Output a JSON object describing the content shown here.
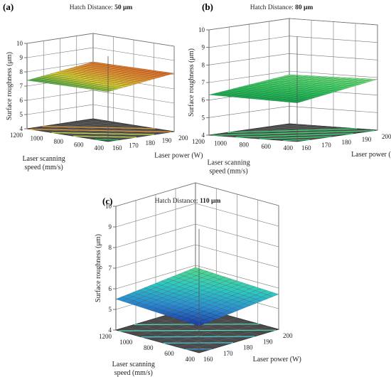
{
  "colors": {
    "floor": "#4a4a4a",
    "floor_grid": "#8a8a8a",
    "box_line": "#555555",
    "contour_low": "#18c85a",
    "contour_mid": "#c8e048",
    "contour_high": "#f0a030"
  },
  "chart_data": [
    {
      "type": "surface",
      "panel": "(a)",
      "title_prefix": "Hatch Distance: ",
      "title_value": "50 μm",
      "zlabel": "Surface roughness (μm)",
      "xlabel": "Laser power (W)",
      "ylabel_line1": "Laser scanning",
      "ylabel_line2": "speed (mm/s)",
      "x_ticks": [
        "160",
        "170",
        "180",
        "190",
        "200"
      ],
      "y_ticks": [
        "400",
        "600",
        "800",
        "1000",
        "1200"
      ],
      "z_ticks": [
        "4",
        "5",
        "6",
        "7",
        "8",
        "9",
        "10"
      ],
      "xlim": [
        160,
        200
      ],
      "ylim": [
        400,
        1200
      ],
      "zlim": [
        4,
        10
      ],
      "surface_z": {
        "x160_y400": 7.5,
        "x200_y400": 8.1,
        "x160_y1200": 7.4,
        "x200_y1200": 8.0
      },
      "colormap": "orange-yellow-green"
    },
    {
      "type": "surface",
      "panel": "(b)",
      "title_prefix": "Hatch Distance: ",
      "title_value": "80 μm",
      "zlabel": "Surface roughness (μm)",
      "xlabel": "Laser power (W)",
      "ylabel_line1": "Laser scanning",
      "ylabel_line2": "speed (mm/s)",
      "x_ticks": [
        "160",
        "170",
        "180",
        "190",
        "200"
      ],
      "y_ticks": [
        "400",
        "600",
        "800",
        "1000",
        "1200"
      ],
      "z_ticks": [
        "4",
        "5",
        "6",
        "7",
        "8",
        "9",
        "10"
      ],
      "xlim": [
        160,
        200
      ],
      "ylim": [
        400,
        1200
      ],
      "zlim": [
        4,
        10
      ],
      "surface_z": {
        "x160_y400": 6.2,
        "x200_y400": 6.9,
        "x160_y1200": 6.3,
        "x200_y1200": 6.8
      },
      "colormap": "green"
    },
    {
      "type": "surface",
      "panel": "(c)",
      "title_prefix": "Hatch Distance: ",
      "title_value": "110 μm",
      "zlabel": "Surface roughness (μm)",
      "xlabel": "Laser power (W)",
      "ylabel_line1": "Laser scanning",
      "ylabel_line2": "speed (mm/s)",
      "x_ticks": [
        "160",
        "170",
        "180",
        "190",
        "200"
      ],
      "y_ticks": [
        "400",
        "600",
        "800",
        "1000",
        "1200"
      ],
      "z_ticks": [
        "4",
        "5",
        "6",
        "7",
        "8",
        "9",
        "10"
      ],
      "xlim": [
        160,
        200
      ],
      "ylim": [
        400,
        1200
      ],
      "zlim": [
        4,
        10
      ],
      "surface_z": {
        "x160_y400": 5.3,
        "x200_y400": 5.7,
        "x160_y1200": 5.5,
        "x200_y1200": 5.9
      },
      "colormap": "blue-cyan-green"
    }
  ]
}
